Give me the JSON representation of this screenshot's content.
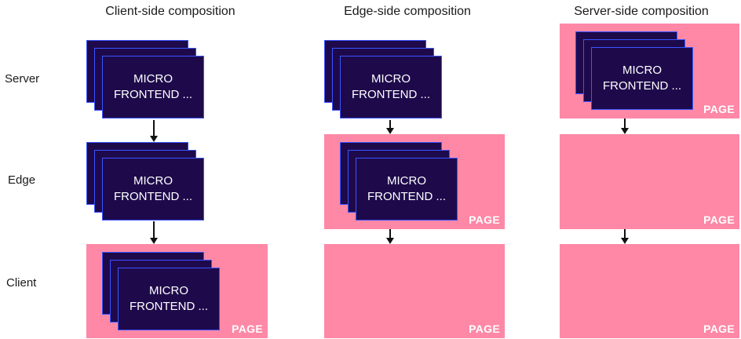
{
  "columns": [
    {
      "title": "Client-side composition"
    },
    {
      "title": "Edge-side composition"
    },
    {
      "title": "Server-side composition"
    }
  ],
  "rows": [
    {
      "label": "Server"
    },
    {
      "label": "Edge"
    },
    {
      "label": "Client"
    }
  ],
  "micro_frontend": {
    "line1": "MICRO",
    "line2": "FRONTEND ..."
  },
  "page_label": "PAGE",
  "colors": {
    "page": "#fe88a6",
    "card": "#1e0a4b",
    "card_border": "#3b54ff",
    "arrow": "#111111"
  }
}
